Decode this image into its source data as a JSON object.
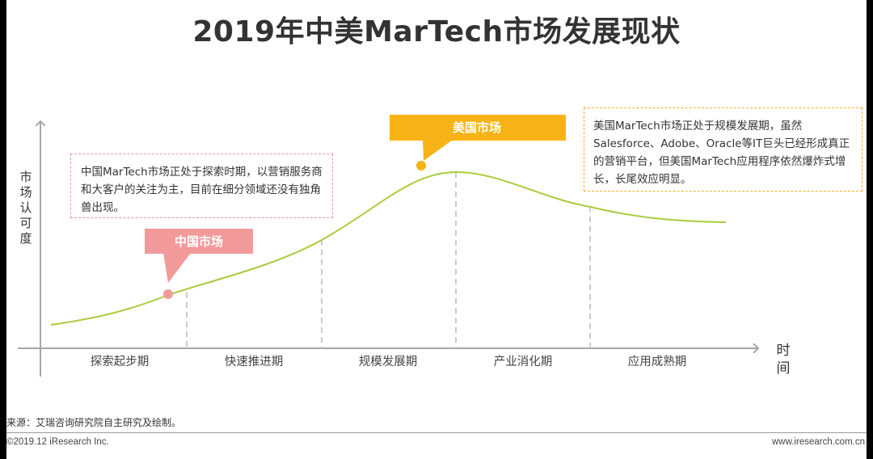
{
  "title": "2019年中美MarTech市场发展现状",
  "y_axis_label": [
    "市",
    "场",
    "认",
    "可",
    "度"
  ],
  "x_axis_label": [
    "时",
    "间"
  ],
  "stages": [
    "探索起步期",
    "快速推进期",
    "规模发展期",
    "产业消化期",
    "应用成熟期"
  ],
  "markers": {
    "china": {
      "label": "中国市场",
      "color": "#f29a9a"
    },
    "us": {
      "label": "美国市场",
      "color": "#f7b316"
    }
  },
  "curve_color": "#a9cc3c",
  "callouts": {
    "china": "中国MarTech市场正处于探索时期，以营销服务商和大客户的关注为主，目前在细分领域还没有独角兽出现。",
    "us": "美国MarTech市场正处于规模发展期，虽然Salesforce、Adobe、Oracle等IT巨头已经形成真正的营销平台，但美国MarTech应用程序依然爆炸式增长，长尾效应明显。"
  },
  "footer": {
    "source": "来源：艾瑞咨询研究院自主研究及绘制。",
    "copyright": "©2019.12 iResearch Inc.",
    "website": "www.iresearch.com.cn"
  }
}
